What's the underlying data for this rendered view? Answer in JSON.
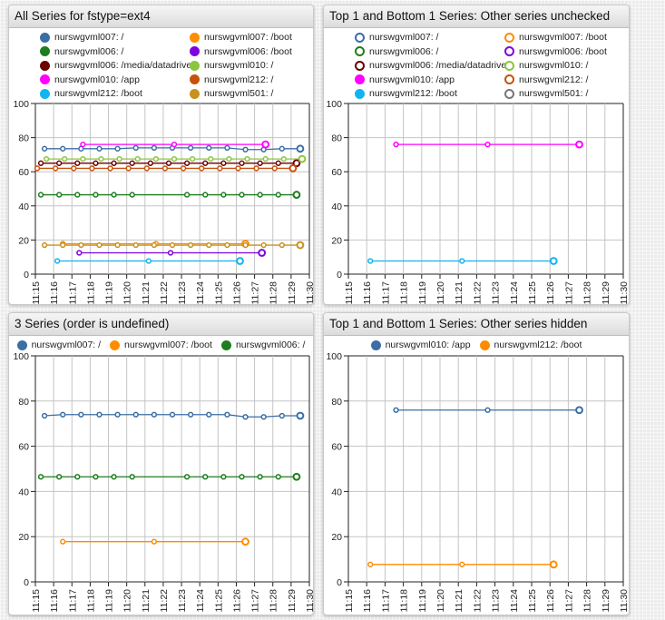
{
  "chart_data": [
    {
      "type": "line",
      "title": "All Series for fstype=ext4",
      "legend_layout": "grid",
      "legend_style": "filled",
      "xlabel": "",
      "ylabel": "",
      "ylim": [
        0,
        100
      ],
      "yticks": [
        "0",
        "20",
        "40",
        "60",
        "80",
        "100"
      ],
      "xticks": [
        "11:15",
        "11:16",
        "11:17",
        "11:18",
        "11:19",
        "11:20",
        "11:21",
        "11:22",
        "11:23",
        "11:24",
        "11:25",
        "11:26",
        "11:27",
        "11:28",
        "11:29",
        "11:30"
      ],
      "grid": true,
      "series": [
        {
          "name": "nurswgvml007: /",
          "color": "#3a6ea5",
          "visible": true,
          "badge": "73",
          "x": [
            15.5,
            16.5,
            17.5,
            18.5,
            19.5,
            20.5,
            21.5,
            22.5,
            23.5,
            24.5,
            25.5,
            26.5,
            27.5,
            28.5,
            29.5
          ],
          "y": [
            73.5,
            73.5,
            73.5,
            73.5,
            73.5,
            74,
            74,
            74,
            74,
            74,
            74,
            73,
            73,
            73.5,
            73.5
          ]
        },
        {
          "name": "nurswgvml007: /boot",
          "color": "#ff8c00",
          "visible": true,
          "badge": "17.8",
          "x": [
            16.5,
            21.6,
            26.5
          ],
          "y": [
            17.8,
            17.8,
            17.8
          ]
        },
        {
          "name": "nurswgvml006: /",
          "color": "#1e7d1e",
          "visible": true,
          "badge": "47",
          "x": [
            15.3,
            16.3,
            17.3,
            18.3,
            19.3,
            20.3,
            23.3,
            24.3,
            25.3,
            26.3,
            27.3,
            28.3,
            29.3
          ],
          "y": [
            46.5,
            46.5,
            46.5,
            46.5,
            46.5,
            46.5,
            46.5,
            46.5,
            46.5,
            46.5,
            46.5,
            46.5,
            46.5
          ]
        },
        {
          "name": "nurswgvml006: /boot",
          "color": "#8000e0",
          "visible": true,
          "badge": "",
          "x": [
            17.4,
            22.4,
            27.4
          ],
          "y": [
            12.5,
            12.5,
            12.5
          ]
        },
        {
          "name": "nurswgvml006: /media/datadrive",
          "color": "#6b0000",
          "visible": true,
          "badge": "",
          "x": [
            15.3,
            16.3,
            17.3,
            18.3,
            19.3,
            20.3,
            21.3,
            22.3,
            23.3,
            24.3,
            25.3,
            26.3,
            27.3,
            28.3,
            29.3
          ],
          "y": [
            65,
            65,
            65,
            65,
            65,
            65,
            65,
            65,
            65,
            65,
            65,
            65,
            65,
            65,
            65
          ]
        },
        {
          "name": "nurswgvml010: /",
          "color": "#8cc63f",
          "visible": true,
          "badge": "68",
          "x": [
            15.6,
            16.6,
            17.6,
            18.6,
            19.6,
            20.6,
            21.6,
            22.6,
            23.6,
            24.6,
            25.6,
            26.6,
            27.6,
            28.6,
            29.6
          ],
          "y": [
            67.5,
            67.5,
            67.5,
            67.5,
            67.5,
            67.5,
            67.5,
            67.5,
            67.5,
            67.5,
            67.5,
            67.5,
            67.5,
            67.5,
            67.5
          ]
        },
        {
          "name": "nurswgvml010: /app",
          "color": "#ff00ff",
          "visible": true,
          "badge": "76",
          "x": [
            17.6,
            22.6,
            27.6
          ],
          "y": [
            76,
            76,
            76
          ]
        },
        {
          "name": "nurswgvml212: /",
          "color": "#c8500a",
          "visible": true,
          "badge": "62",
          "x": [
            15.1,
            16.1,
            17.1,
            18.1,
            19.1,
            20.1,
            21.1,
            22.1,
            23.1,
            24.1,
            25.1,
            26.1,
            27.1,
            28.1,
            29.1
          ],
          "y": [
            62,
            62,
            62,
            62,
            62,
            62,
            62,
            62,
            62,
            62,
            62,
            62,
            62,
            62,
            62
          ]
        },
        {
          "name": "nurswgvml212: /boot",
          "color": "#12b4f0",
          "visible": true,
          "badge": "7.7",
          "x": [
            16.2,
            21.2,
            26.2
          ],
          "y": [
            7.7,
            7.7,
            7.7
          ]
        },
        {
          "name": "nurswgvml501: /",
          "color": "#c8901e",
          "visible": true,
          "badge": "17",
          "x": [
            15.5,
            16.5,
            17.5,
            18.5,
            19.5,
            20.5,
            21.5,
            22.5,
            23.5,
            24.5,
            25.5,
            26.5,
            27.5,
            28.5,
            29.5
          ],
          "y": [
            17,
            17,
            17,
            17,
            17,
            17,
            17,
            17,
            17,
            17,
            17,
            17,
            17,
            17,
            17
          ]
        }
      ]
    },
    {
      "type": "line",
      "title": "Top 1 and Bottom 1 Series: Other series unchecked",
      "legend_layout": "grid",
      "legend_style": "checkbox",
      "xlabel": "",
      "ylabel": "",
      "ylim": [
        0,
        100
      ],
      "yticks": [
        "0",
        "20",
        "40",
        "60",
        "80",
        "100"
      ],
      "xticks": [
        "11:15",
        "11:16",
        "11:17",
        "11:18",
        "11:19",
        "11:20",
        "11:21",
        "11:22",
        "11:23",
        "11:24",
        "11:25",
        "11:26",
        "11:27",
        "11:28",
        "11:29",
        "11:30"
      ],
      "grid": true,
      "series": [
        {
          "name": "nurswgvml007: /",
          "color": "#3a6ea5",
          "visible": false,
          "badge": "",
          "x": [],
          "y": []
        },
        {
          "name": "nurswgvml007: /boot",
          "color": "#ff8c00",
          "visible": false,
          "badge": "",
          "x": [],
          "y": []
        },
        {
          "name": "nurswgvml006: /",
          "color": "#1e7d1e",
          "visible": false,
          "badge": "",
          "x": [],
          "y": []
        },
        {
          "name": "nurswgvml006: /boot",
          "color": "#8000e0",
          "visible": false,
          "badge": "",
          "x": [],
          "y": []
        },
        {
          "name": "nurswgvml006: /media/datadrive",
          "color": "#6b0000",
          "visible": false,
          "badge": "",
          "x": [],
          "y": []
        },
        {
          "name": "nurswgvml010: /",
          "color": "#8cc63f",
          "visible": false,
          "badge": "",
          "x": [],
          "y": []
        },
        {
          "name": "nurswgvml010: /app",
          "color": "#ff00ff",
          "visible": true,
          "badge": "76",
          "x": [
            17.6,
            22.6,
            27.6
          ],
          "y": [
            76,
            76,
            76
          ]
        },
        {
          "name": "nurswgvml212: /",
          "color": "#c8500a",
          "visible": false,
          "badge": "",
          "x": [],
          "y": []
        },
        {
          "name": "nurswgvml212: /boot",
          "color": "#12b4f0",
          "visible": true,
          "badge": "7.7",
          "x": [
            16.2,
            21.2,
            26.2
          ],
          "y": [
            7.7,
            7.7,
            7.7
          ]
        },
        {
          "name": "nurswgvml501: /",
          "color": "#777777",
          "visible": false,
          "badge": "",
          "x": [],
          "y": []
        }
      ]
    },
    {
      "type": "line",
      "title": "3 Series (order is undefined)",
      "legend_layout": "row",
      "legend_style": "filled",
      "xlabel": "",
      "ylabel": "",
      "ylim": [
        0,
        100
      ],
      "yticks": [
        "0",
        "20",
        "40",
        "60",
        "80",
        "100"
      ],
      "xticks": [
        "11:15",
        "11:16",
        "11:17",
        "11:18",
        "11:19",
        "11:20",
        "11:21",
        "11:22",
        "11:23",
        "11:24",
        "11:25",
        "11:26",
        "11:27",
        "11:28",
        "11:29",
        "11:30"
      ],
      "grid": true,
      "series": [
        {
          "name": "nurswgvml007: /",
          "color": "#3a6ea5",
          "visible": true,
          "badge": "73",
          "x": [
            15.5,
            16.5,
            17.5,
            18.5,
            19.5,
            20.5,
            21.5,
            22.5,
            23.5,
            24.5,
            25.5,
            26.5,
            27.5,
            28.5,
            29.5
          ],
          "y": [
            73.5,
            74,
            74,
            74,
            74,
            74,
            74,
            74,
            74,
            74,
            74,
            73,
            73,
            73.5,
            73.5
          ]
        },
        {
          "name": "nurswgvml007: /boot",
          "color": "#ff8c00",
          "visible": true,
          "badge": "17.8",
          "x": [
            16.5,
            21.5,
            26.5
          ],
          "y": [
            17.8,
            17.8,
            17.8
          ]
        },
        {
          "name": "nurswgvml006: /",
          "color": "#1e7d1e",
          "visible": true,
          "badge": "47",
          "x": [
            15.3,
            16.3,
            17.3,
            18.3,
            19.3,
            20.3,
            23.3,
            24.3,
            25.3,
            26.3,
            27.3,
            28.3,
            29.3
          ],
          "y": [
            46.5,
            46.5,
            46.5,
            46.5,
            46.5,
            46.5,
            46.5,
            46.5,
            46.5,
            46.5,
            46.5,
            46.5,
            46.5
          ]
        }
      ]
    },
    {
      "type": "line",
      "title": "Top 1 and Bottom 1 Series: Other series hidden",
      "legend_layout": "row",
      "legend_style": "filled",
      "xlabel": "",
      "ylabel": "",
      "ylim": [
        0,
        100
      ],
      "yticks": [
        "0",
        "20",
        "40",
        "60",
        "80",
        "100"
      ],
      "xticks": [
        "11:15",
        "11:16",
        "11:17",
        "11:18",
        "11:19",
        "11:20",
        "11:21",
        "11:22",
        "11:23",
        "11:24",
        "11:25",
        "11:26",
        "11:27",
        "11:28",
        "11:29",
        "11:30"
      ],
      "grid": true,
      "series": [
        {
          "name": "nurswgvml010: /app",
          "color": "#3a6ea5",
          "visible": true,
          "badge": "76",
          "x": [
            17.6,
            22.6,
            27.6
          ],
          "y": [
            76,
            76,
            76
          ]
        },
        {
          "name": "nurswgvml212: /boot",
          "color": "#ff8c00",
          "visible": true,
          "badge": "7.7",
          "x": [
            16.2,
            21.2,
            26.2
          ],
          "y": [
            7.7,
            7.7,
            7.7
          ]
        }
      ]
    }
  ]
}
